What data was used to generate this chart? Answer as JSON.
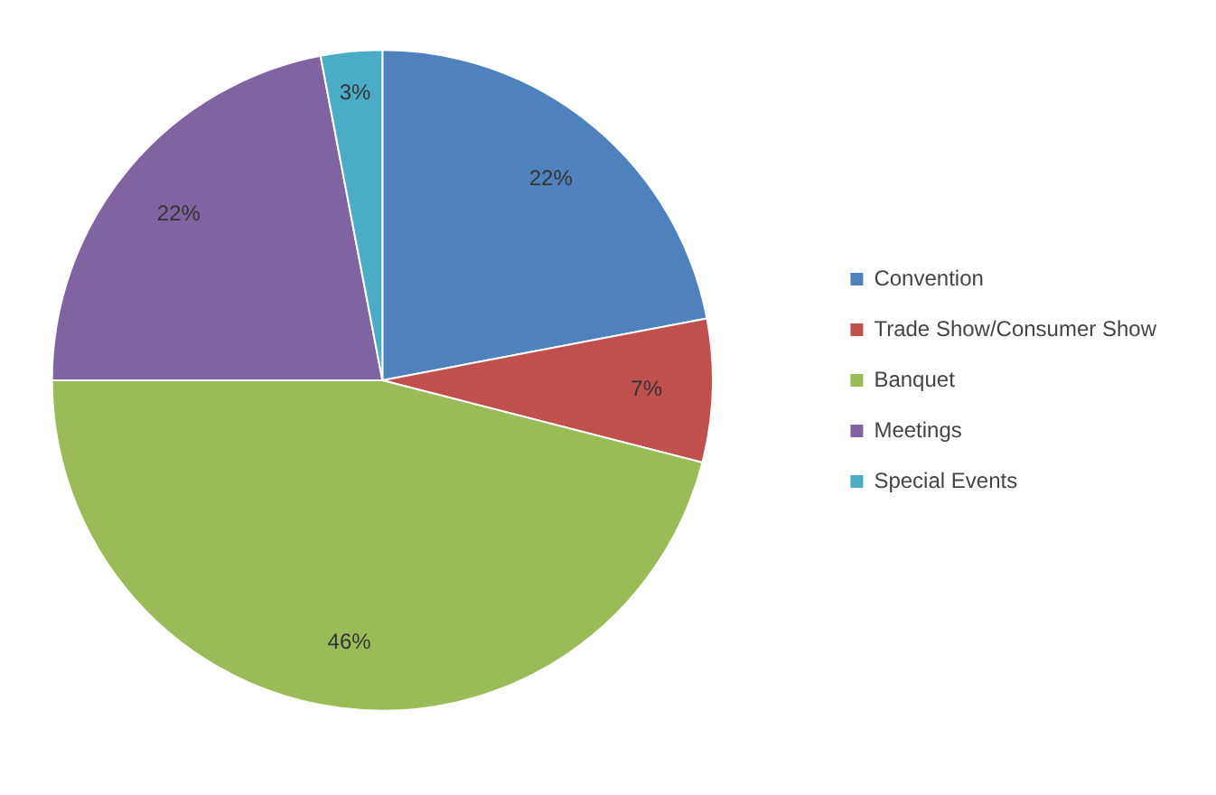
{
  "chart_data": {
    "type": "pie",
    "categories": [
      "Convention",
      "Trade Show/Consumer Show",
      "Banquet",
      "Meetings",
      "Special Events"
    ],
    "values": [
      22,
      7,
      46,
      22,
      3
    ],
    "colors": [
      "#4f81bd",
      "#c0504d",
      "#9bbb59",
      "#8064a2",
      "#4bacc6"
    ],
    "value_labels": [
      "22%",
      "7%",
      "46%",
      "22%",
      "3%"
    ],
    "legend": "right"
  }
}
